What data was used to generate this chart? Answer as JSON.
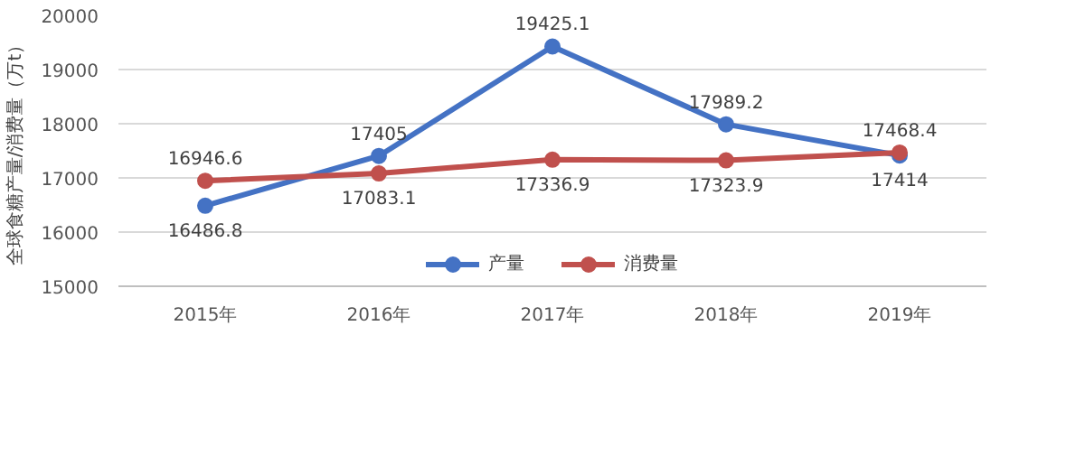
{
  "chart_data": {
    "type": "line",
    "ylabel": "全球食糖产量/消费量（万t）",
    "categories": [
      "2015年",
      "2016年",
      "2017年",
      "2018年",
      "2019年"
    ],
    "series": [
      {
        "name": "产量",
        "color": "#4472c4",
        "values": [
          16486.8,
          17405,
          19425.1,
          17989.2,
          17414
        ]
      },
      {
        "name": "消费量",
        "color": "#c0504d",
        "values": [
          16946.6,
          17083.1,
          17336.9,
          17323.9,
          17468.4
        ]
      }
    ],
    "ylim": [
      15000,
      20000
    ],
    "yticks": [
      15000,
      16000,
      17000,
      18000,
      19000,
      20000
    ],
    "grid": "y",
    "legend": "bottom",
    "marker": "circle",
    "data_labels": true
  }
}
